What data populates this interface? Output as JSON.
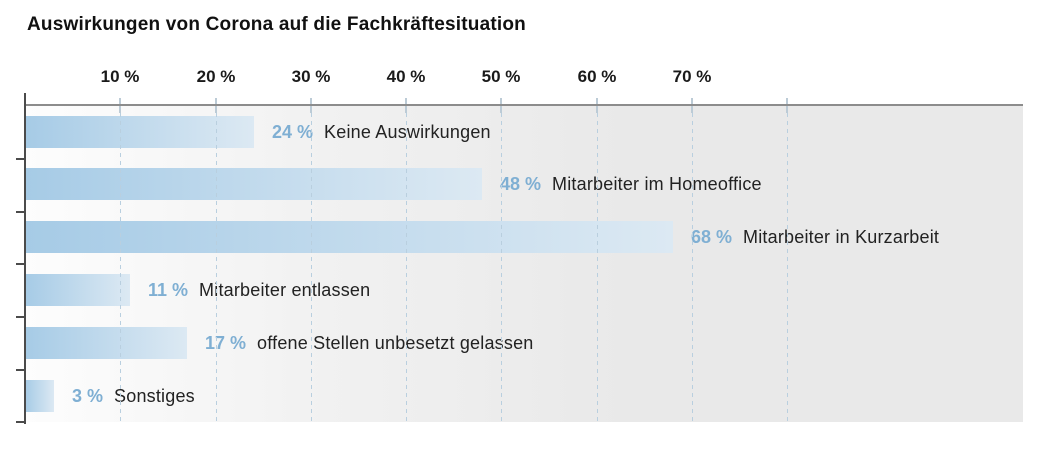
{
  "chart_data": {
    "type": "bar",
    "orientation": "horizontal",
    "title": "Auswirkungen von Corona auf die Fachkräftesituation",
    "categories": [
      "Keine Auswirkungen",
      "Mitarbeiter im Homeoffice",
      "Mitarbeiter in Kurzarbeit",
      "Mitarbeiter entlassen",
      "offene Stellen unbesetzt gelassen",
      "Sonstiges"
    ],
    "values": [
      24,
      48,
      68,
      11,
      17,
      3
    ],
    "value_labels": [
      "24 %",
      "48 %",
      "68 %",
      "11 %",
      "17 %",
      "3 %"
    ],
    "xlabel": "",
    "ylabel": "",
    "x_axis": {
      "position": "top",
      "tick_labels": [
        "10 %",
        "20 %",
        "30 %",
        "40 %",
        "50 %",
        "60 %",
        "70 %"
      ],
      "tick_values": [
        10,
        20,
        30,
        40,
        50,
        60,
        70
      ],
      "gridline_values": [
        10,
        20,
        30,
        40,
        50,
        60,
        70,
        80
      ],
      "gridline_style": "dashed",
      "range": [
        0,
        104.7
      ]
    },
    "legend": "none",
    "colors": {
      "bar_gradient_start": "#a6cbe6",
      "bar_gradient_end": "#dce9f3",
      "value_label": "#7fafd3",
      "category_label": "#222222",
      "gridline": "#b9cfdf",
      "top_axis_line": "#8c8c8c",
      "left_axis_line": "#4b4b4b",
      "plot_bg_left": "#fdfdfd",
      "plot_bg_right": "#e9e9e9",
      "title": "#111111"
    }
  }
}
